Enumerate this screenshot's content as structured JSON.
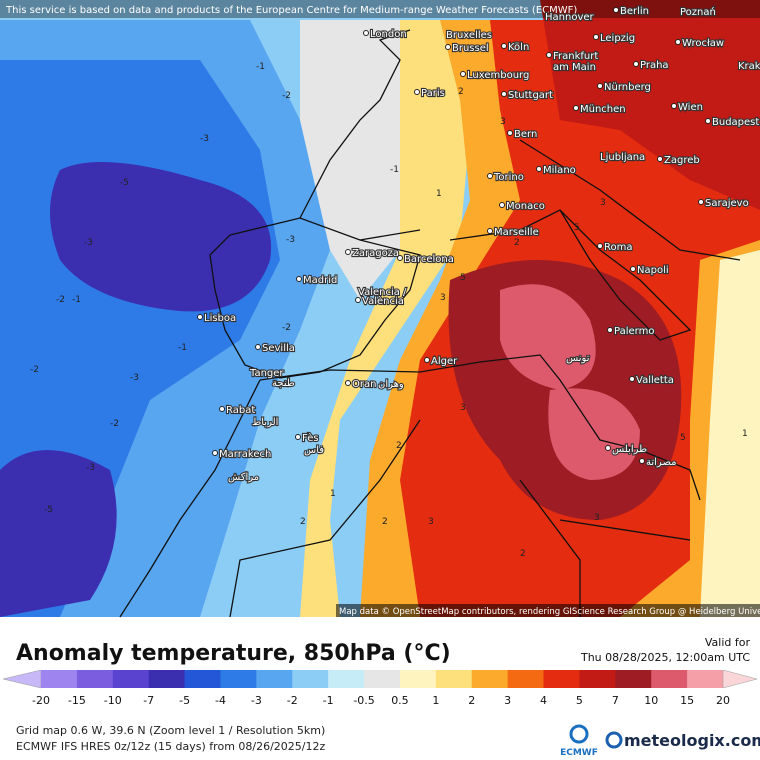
{
  "banner": "This service is based on data and products of the European Centre for Medium-range Weather Forecasts (ECMWF)",
  "attribution": "Map data © OpenStreetMap contributors, rendering GIScience Research Group @ Heidelberg University",
  "cities": [
    "London",
    "Hannover",
    "Berlin",
    "Poznań",
    "Bruxelles",
    "Brussel",
    "Köln",
    "Leipzig",
    "Wrocław",
    "Frankfurt",
    "am Main",
    "Praha",
    "Krak",
    "Luxembourg",
    "Paris",
    "Stuttgart",
    "Nürnberg",
    "München",
    "Wien",
    "Budapest",
    "Bern",
    "Ljubljana",
    "Zagreb",
    "Torino",
    "Milano",
    "Sarajevo",
    "Monaco",
    "Marseille",
    "Roma",
    "Zaragoza",
    "Barcelona",
    "Madrid",
    "Napoli",
    "Valencia /",
    "València",
    "Lisboa",
    "Palermo",
    "Sevilla",
    "تونس",
    "Alger",
    "Tanger",
    "طنجة",
    "Valletta",
    "Oran",
    "وهران",
    "Rabat",
    "الرباط",
    "Fès",
    "فاس",
    "Marrakech",
    "مراكش",
    "طرابلس",
    "مصراتة"
  ],
  "contour_labels": [
    -1,
    -2,
    -3,
    -5,
    -3,
    -2,
    -1,
    -2,
    -3,
    -1,
    -2,
    -3,
    -5,
    -2,
    -3,
    -1,
    1,
    2,
    3,
    2,
    3,
    5,
    3,
    2,
    1,
    2,
    3,
    2,
    3,
    5,
    3,
    5,
    2,
    1
  ],
  "legend": {
    "title": "Anomaly temperature, 850hPa (°C)",
    "ticks": [
      -20,
      -15,
      -10,
      -7,
      -5,
      -4,
      -3,
      -2,
      -1,
      -0.5,
      0.5,
      1,
      2,
      3,
      4,
      5,
      7,
      10,
      15,
      20
    ],
    "colors": [
      "#c8b8f8",
      "#9d84ef",
      "#7b5ee0",
      "#5a44cf",
      "#3b2fb0",
      "#2456d8",
      "#2e7be8",
      "#58a5f0",
      "#8ccdf5",
      "#c6ecf8",
      "#e6e6e6",
      "#fdf4c0",
      "#fde07c",
      "#fcaa2c",
      "#f46a12",
      "#e32c10",
      "#c21a14",
      "#9e1c24",
      "#dd5a6c",
      "#f5a0a8",
      "#fbd6d8"
    ]
  },
  "valid": {
    "label": "Valid for",
    "time": "Thu 08/28/2025, 12:00am UTC"
  },
  "footer": {
    "grid": "Grid map 0.6 W, 39.6 N (Zoom level 1 / Resolution 5km)",
    "model": "ECMWF IFS HRES 0z/12z (15 days) from 08/26/2025/12z",
    "ecmwf": "ECMWF",
    "brand": "meteologix.com"
  }
}
